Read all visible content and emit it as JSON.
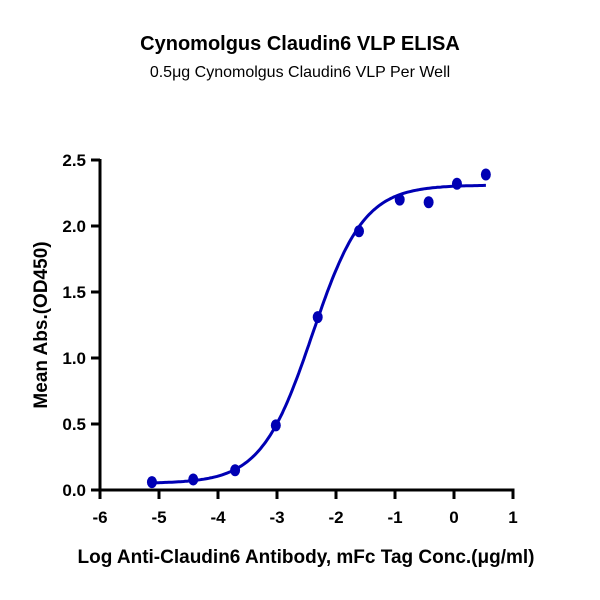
{
  "chart_data": {
    "type": "scatter",
    "title": "Cynomolgus Claudin6 VLP ELISA",
    "subtitle": "0.5μg Cynomolgus Claudin6 VLP Per Well",
    "xlabel": "Log Anti-Claudin6 Antibody, mFc Tag Conc.(μg/ml)",
    "ylabel": "Mean Abs.(OD450)",
    "xlim": [
      -6,
      1
    ],
    "ylim": [
      0,
      2.5
    ],
    "xticks": [
      "-6",
      "-5",
      "-4",
      "-3",
      "-2",
      "-1",
      "0",
      "1"
    ],
    "yticks": [
      "0.0",
      "0.5",
      "1.0",
      "1.5",
      "2.0",
      "2.5"
    ],
    "grid": false,
    "color": "#0000b4",
    "series": [
      {
        "x": [
          -5.12,
          -4.42,
          -3.71,
          -3.02,
          -2.31,
          -1.61,
          -0.92,
          -0.43,
          0.05,
          0.54
        ],
        "y": [
          0.06,
          0.08,
          0.15,
          0.49,
          1.31,
          1.96,
          2.2,
          2.18,
          2.32,
          2.39
        ]
      }
    ],
    "fit_curve": {
      "model": "4PL sigmoid",
      "bottom": 0.05,
      "top": 2.31,
      "log_ec50": -2.4,
      "hill": 1.0,
      "x_range": [
        -5.12,
        0.54
      ]
    }
  }
}
